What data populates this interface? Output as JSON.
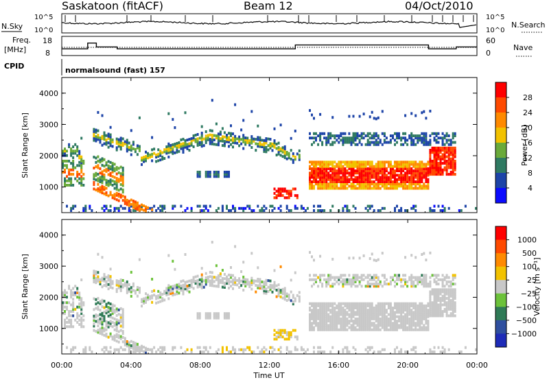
{
  "header": {
    "station": "Saskatoon (fitACF)",
    "beam": "Beam 12",
    "date": "04/Oct/2010"
  },
  "nsky_panel": {
    "left_label": "N.Sky",
    "right_label": "N.Search",
    "left_ticks": [
      "10^5",
      "10^0"
    ],
    "right_ticks": [
      "10^5",
      "10^0"
    ]
  },
  "freq_panel": {
    "left_label_line1": "Freq.",
    "left_label_line2": "[MHz]",
    "right_label": "Nave",
    "left_ticks": [
      "18",
      "8"
    ],
    "right_ticks": [
      "60",
      "0"
    ]
  },
  "cpid_panel": {
    "label": "CPID",
    "text": "normalsound (fast) 157"
  },
  "x_axis": {
    "title": "Time UT",
    "ticks": [
      "00:00",
      "04:00",
      "08:00",
      "12:00",
      "16:00",
      "20:00",
      "00:00"
    ]
  },
  "power_panel": {
    "ylabel": "Slant Range [km]",
    "yticks": [
      "4000",
      "3000",
      "2000",
      "1000"
    ],
    "cbar_label": "Power [dB]",
    "cbar_ticks": [
      "28",
      "24",
      "20",
      "16",
      "12",
      "8",
      "4"
    ],
    "colors": [
      "#0b0bff",
      "#1d44a8",
      "#2f7a62",
      "#6aaa3a",
      "#f2c200",
      "#ff8a00",
      "#ff4a00",
      "#ff0000"
    ]
  },
  "velocity_panel": {
    "ylabel": "Slant Range [km]",
    "yticks": [
      "4000",
      "3000",
      "2000",
      "1000"
    ],
    "cbar_label": "Velocity [m s⁻¹]",
    "cbar_ticks": [
      "1000",
      "500",
      "100",
      "25",
      "−25",
      "−100",
      "−500",
      "−1000"
    ],
    "colors": [
      "#1e2bb8",
      "#2f4f9f",
      "#2f7a56",
      "#6cc23a",
      "#c8c8c8",
      "#f2c200",
      "#ff8a00",
      "#ff4a00",
      "#ff0000"
    ]
  },
  "chart_data": [
    {
      "type": "line",
      "title": "N.Sky / N.Search",
      "xlabel": "Time UT",
      "x_range_hours": [
        0,
        24
      ],
      "y_scale": "log",
      "ylim": [
        1,
        100000
      ]
    },
    {
      "type": "line",
      "title": "Freq. / Nave",
      "series": [
        {
          "name": "Freq. [MHz]",
          "x_hours": [
            0,
            1.5,
            2.0,
            3.2,
            13.1,
            13.5,
            21.2,
            22.8,
            24
          ],
          "values": [
            11.5,
            14.5,
            12.5,
            11.5,
            11.5,
            13.5,
            11.5,
            12.5,
            12.5
          ]
        }
      ],
      "ylim": [
        8,
        18
      ]
    },
    {
      "type": "heatmap",
      "title": "Power [dB]",
      "xlabel": "Time UT",
      "ylabel": "Slant Range [km]",
      "x_range_hours": [
        0,
        24
      ],
      "ylim": [
        180,
        4500
      ],
      "colorbar_range_db": [
        0,
        30
      ]
    },
    {
      "type": "heatmap",
      "title": "Velocity [m s-1]",
      "xlabel": "Time UT",
      "ylabel": "Slant Range [km]",
      "x_range_hours": [
        0,
        24
      ],
      "ylim": [
        180,
        4500
      ],
      "colorbar_range": [
        -1000,
        1000
      ]
    }
  ]
}
